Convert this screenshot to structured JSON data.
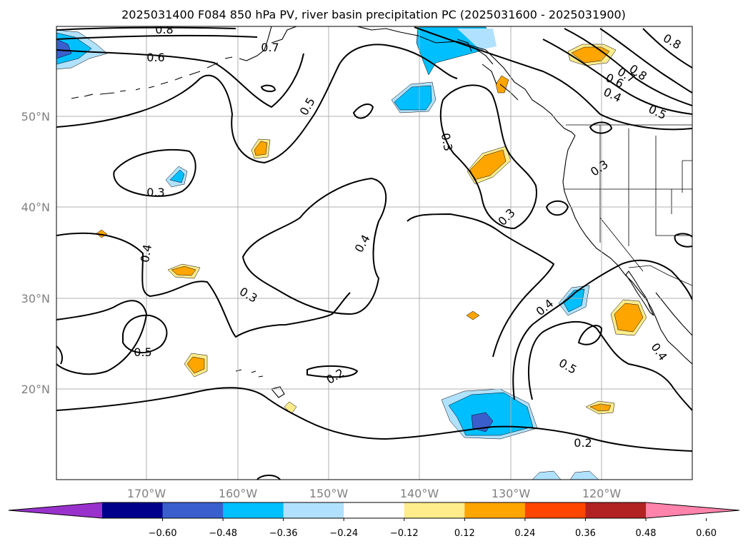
{
  "title": "2025031400 F084 850 hPa PV, river basin precipitation PC (2025031600 - 2025031900)",
  "axes": {
    "lon_labels": [
      "170°W",
      "160°W",
      "150°W",
      "140°W",
      "130°W",
      "120°W"
    ],
    "lat_labels": [
      "50°N",
      "40°N",
      "30°N",
      "20°N"
    ]
  },
  "contour_labels": [
    "0.8",
    "0.6",
    "0.7",
    "0.5",
    "0.8",
    "0.7",
    "0.6",
    "0.4",
    "0.5",
    "0.3",
    "0.3",
    "0.3",
    "0.4",
    "0.4",
    "0.3",
    "0.3",
    "0.4",
    "0.5",
    "0.5",
    "0.4",
    "0.2",
    "0.2",
    "0.8"
  ],
  "colorbar": {
    "ticks": [
      "−0.60",
      "−0.48",
      "−0.36",
      "−0.24",
      "−0.12",
      "0.12",
      "0.24",
      "0.36",
      "0.48",
      "0.60"
    ],
    "colors": [
      "#9932cc",
      "#00008b",
      "#3a5fcd",
      "#00bfff",
      "#b0e2ff",
      "#ffffff",
      "#ffec8b",
      "#ffa500",
      "#ff4500",
      "#b22222",
      "#ff83aa"
    ]
  }
}
